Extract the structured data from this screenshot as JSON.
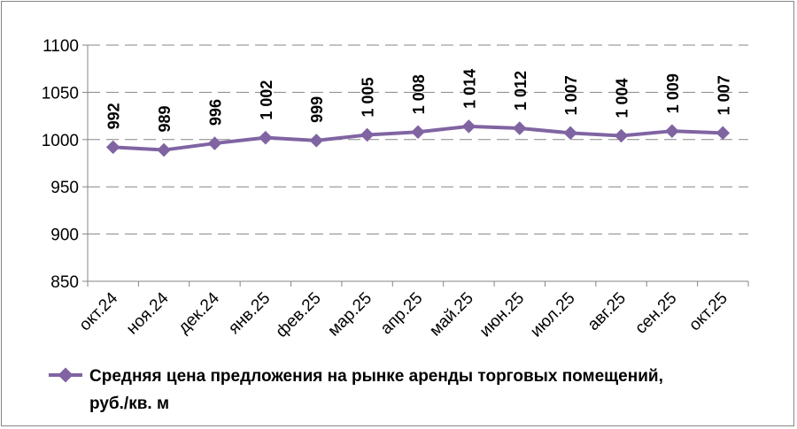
{
  "chart_data": {
    "type": "line",
    "categories": [
      "окт.24",
      "ноя.24",
      "дек.24",
      "янв.25",
      "фев.25",
      "мар.25",
      "апр.25",
      "май.25",
      "июн.25",
      "июл.25",
      "авг.25",
      "сен.25",
      "окт.25"
    ],
    "series": [
      {
        "name": "Средняя цена предложения на рынке аренды торговых помещений, руб./кв. м",
        "values": [
          992,
          989,
          996,
          1002,
          999,
          1005,
          1008,
          1014,
          1012,
          1007,
          1004,
          1009,
          1007
        ],
        "data_labels": [
          "992",
          "989",
          "996",
          "1 002",
          "999",
          "1 005",
          "1 008",
          "1 014",
          "1 012",
          "1 007",
          "1 004",
          "1 009",
          "1 007"
        ],
        "color": "#8064A2"
      }
    ],
    "ylim": [
      850,
      1100
    ],
    "yticks": [
      "850",
      "900",
      "950",
      "1000",
      "1050",
      "1100"
    ],
    "grid": "horizontal-dashed",
    "legend_position": "bottom",
    "legend": {
      "line1": "Средняя цена предложения на рынке аренды торговых помещений,",
      "line2": "руб./кв. м"
    }
  }
}
